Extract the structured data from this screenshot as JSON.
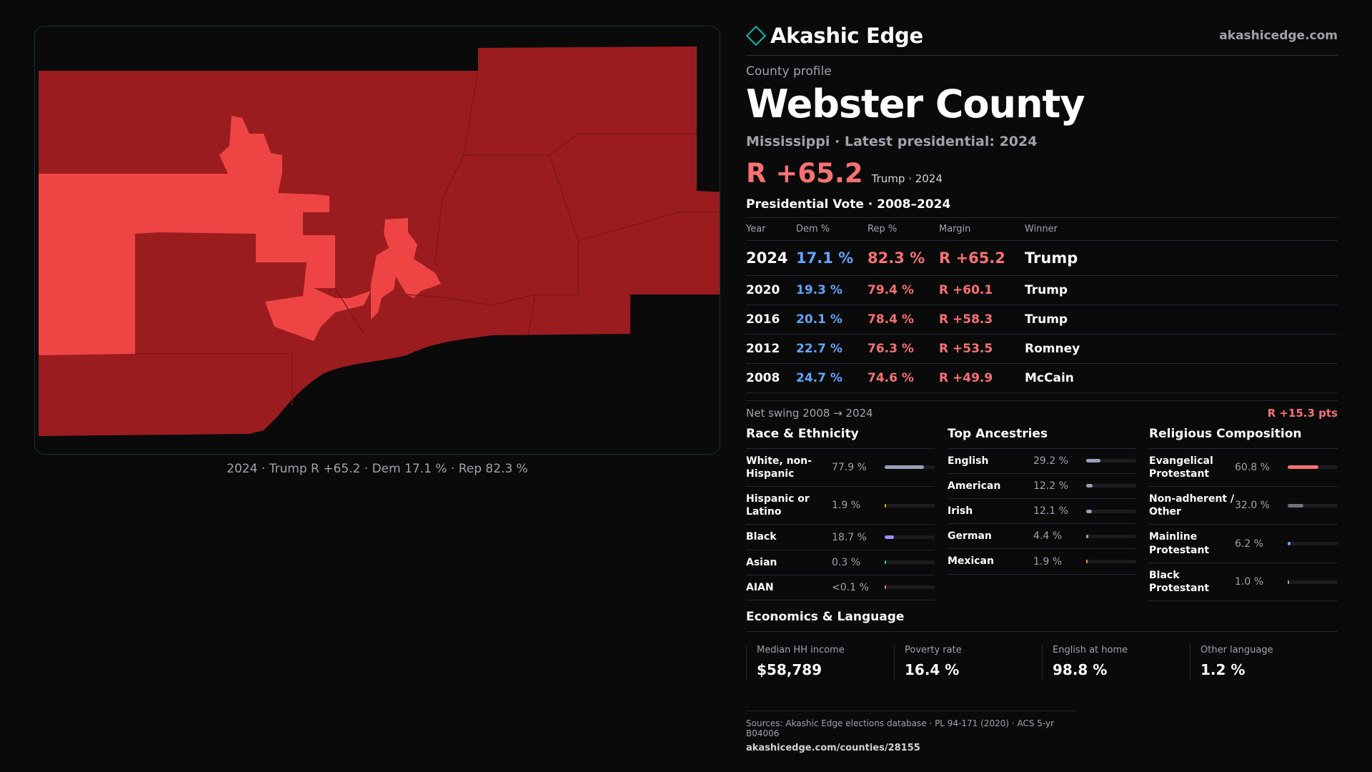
{
  "brand": {
    "name": "Akashic Edge",
    "site": "akashicedge.com"
  },
  "map": {
    "caption": "2024 · Trump R +65.2 · Dem 17.1 % · Rep 82.3 %",
    "colors": {
      "strong_rep": "#9b1c1f",
      "lean_rep": "#ef4444",
      "background": "#0a0a0b",
      "border": "#12343a"
    }
  },
  "profile": {
    "eyebrow": "County profile",
    "county": "Webster County",
    "subtitle": "Mississippi · Latest presidential: 2024",
    "headline_margin": "R +65.2",
    "headline_note": "Trump · 2024"
  },
  "votes": {
    "title": "Presidential Vote · 2008–2024",
    "headers": {
      "year": "Year",
      "dem": "Dem %",
      "rep": "Rep %",
      "margin": "Margin",
      "winner": "Winner"
    },
    "rows": [
      {
        "year": "2024",
        "dem": "17.1 %",
        "rep": "82.3 %",
        "margin": "R +65.2",
        "winner": "Trump"
      },
      {
        "year": "2020",
        "dem": "19.3 %",
        "rep": "79.4 %",
        "margin": "R +60.1",
        "winner": "Trump"
      },
      {
        "year": "2016",
        "dem": "20.1 %",
        "rep": "78.4 %",
        "margin": "R +58.3",
        "winner": "Trump"
      },
      {
        "year": "2012",
        "dem": "22.7 %",
        "rep": "76.3 %",
        "margin": "R +53.5",
        "winner": "Romney"
      },
      {
        "year": "2008",
        "dem": "24.7 %",
        "rep": "74.6 %",
        "margin": "R +49.9",
        "winner": "McCain"
      }
    ],
    "swing_label": "Net swing 2008 → 2024",
    "swing_value": "R +15.3 pts"
  },
  "race": {
    "title": "Race & Ethnicity",
    "rows": [
      {
        "label": "White, non-Hispanic",
        "value": "77.9 %",
        "pct": 77.9,
        "color": "#94a3b8"
      },
      {
        "label": "Hispanic or Latino",
        "value": "1.9 %",
        "pct": 1.9,
        "color": "#f59e0b"
      },
      {
        "label": "Black",
        "value": "18.7 %",
        "pct": 18.7,
        "color": "#a78bfa"
      },
      {
        "label": "Asian",
        "value": "0.3 %",
        "pct": 0.3,
        "color": "#34d399"
      },
      {
        "label": "AIAN",
        "value": "<0.1 %",
        "pct": 0.05,
        "color": "#f472b6"
      }
    ]
  },
  "ancestry": {
    "title": "Top Ancestries",
    "rows": [
      {
        "label": "English",
        "value": "29.2 %",
        "pct": 29.2,
        "color": "#94a3b8"
      },
      {
        "label": "American",
        "value": "12.2 %",
        "pct": 12.2,
        "color": "#94a3b8"
      },
      {
        "label": "Irish",
        "value": "12.1 %",
        "pct": 12.1,
        "color": "#94a3b8"
      },
      {
        "label": "German",
        "value": "4.4 %",
        "pct": 4.4,
        "color": "#94a3b8"
      },
      {
        "label": "Mexican",
        "value": "1.9 %",
        "pct": 1.9,
        "color": "#f59e0b"
      }
    ]
  },
  "religion": {
    "title": "Religious Composition",
    "rows": [
      {
        "label": "Evangelical Protestant",
        "value": "60.8 %",
        "pct": 60.8,
        "color": "#f87171"
      },
      {
        "label": "Non-adherent / Other",
        "value": "32.0 %",
        "pct": 32.0,
        "color": "#6b7280"
      },
      {
        "label": "Mainline Protestant",
        "value": "6.2 %",
        "pct": 6.2,
        "color": "#60a5fa"
      },
      {
        "label": "Black Protestant",
        "value": "1.0 %",
        "pct": 1.0,
        "color": "#a1a1aa"
      }
    ]
  },
  "economics": {
    "title": "Economics & Language",
    "cells": [
      {
        "label": "Median HH income",
        "value": "$58,789"
      },
      {
        "label": "Poverty rate",
        "value": "16.4 %"
      },
      {
        "label": "English at home",
        "value": "98.8 %"
      },
      {
        "label": "Other language",
        "value": "1.2 %"
      }
    ]
  },
  "sources": {
    "line": "Sources: Akashic Edge elections database · PL 94-171 (2020) · ACS 5-yr B04006",
    "url": "akashicedge.com/counties/28155"
  }
}
